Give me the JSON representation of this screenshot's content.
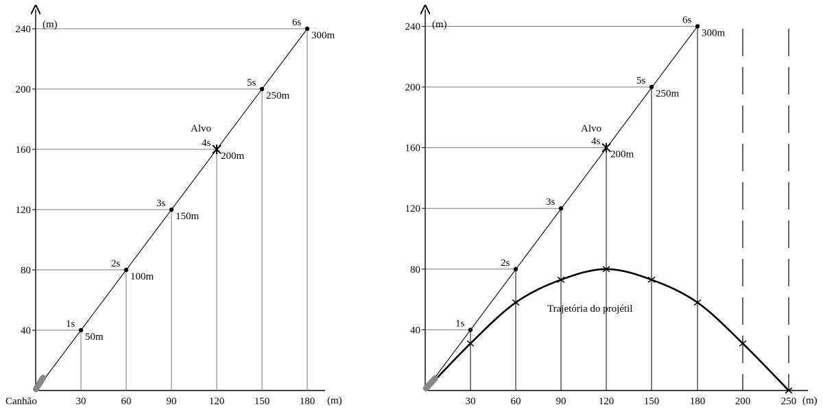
{
  "chart_data": [
    {
      "type": "line",
      "y_unit": "(m)",
      "x_unit": "(m)",
      "x_ticks": [
        "30",
        "60",
        "90",
        "120",
        "150",
        "180"
      ],
      "origin_label": "Canhão",
      "y_ticks": [
        "40",
        "80",
        "120",
        "160",
        "200",
        "240"
      ],
      "xlim": [
        0,
        200
      ],
      "ylim": [
        0,
        250
      ],
      "line_of_sight": {
        "x": [
          30,
          60,
          90,
          120,
          150,
          180
        ],
        "y": [
          40,
          80,
          120,
          160,
          200,
          240
        ],
        "time_labels": [
          "1s",
          "2s",
          "3s",
          "4s",
          "5s",
          "6s"
        ],
        "distance_labels": [
          "50m",
          "100m",
          "150m",
          "200m",
          "250m",
          "300m"
        ]
      },
      "target": {
        "x": 120,
        "y": 160,
        "label": "Alvo"
      },
      "grid": "horizontal and vertical guide lines from axes to each point"
    },
    {
      "type": "line",
      "y_unit": "(m)",
      "x_unit": "(m)",
      "x_ticks": [
        "30",
        "60",
        "90",
        "120",
        "150",
        "180",
        "200",
        "250"
      ],
      "y_ticks": [
        "40",
        "80",
        "120",
        "160",
        "200",
        "240"
      ],
      "xlim": [
        0,
        250
      ],
      "ylim": [
        0,
        250
      ],
      "line_of_sight": {
        "x": [
          30,
          60,
          90,
          120,
          150,
          180
        ],
        "y": [
          40,
          80,
          120,
          160,
          200,
          240
        ],
        "time_labels": [
          "1s",
          "2s",
          "3s",
          "4s",
          "5s",
          "6s"
        ],
        "distance_labels": [
          "",
          "",
          "",
          "200m",
          "250m",
          "300m"
        ]
      },
      "target": {
        "x": 120,
        "y": 160,
        "label": "Alvo"
      },
      "trajectory": {
        "name": "Trajetória do projétil",
        "x": [
          0,
          30,
          60,
          90,
          120,
          150,
          180,
          210,
          240
        ],
        "y": [
          0,
          31,
          58,
          73,
          80,
          73,
          58,
          31,
          0
        ]
      },
      "grid": "horizontal and vertical guide lines from axes to each point"
    }
  ]
}
